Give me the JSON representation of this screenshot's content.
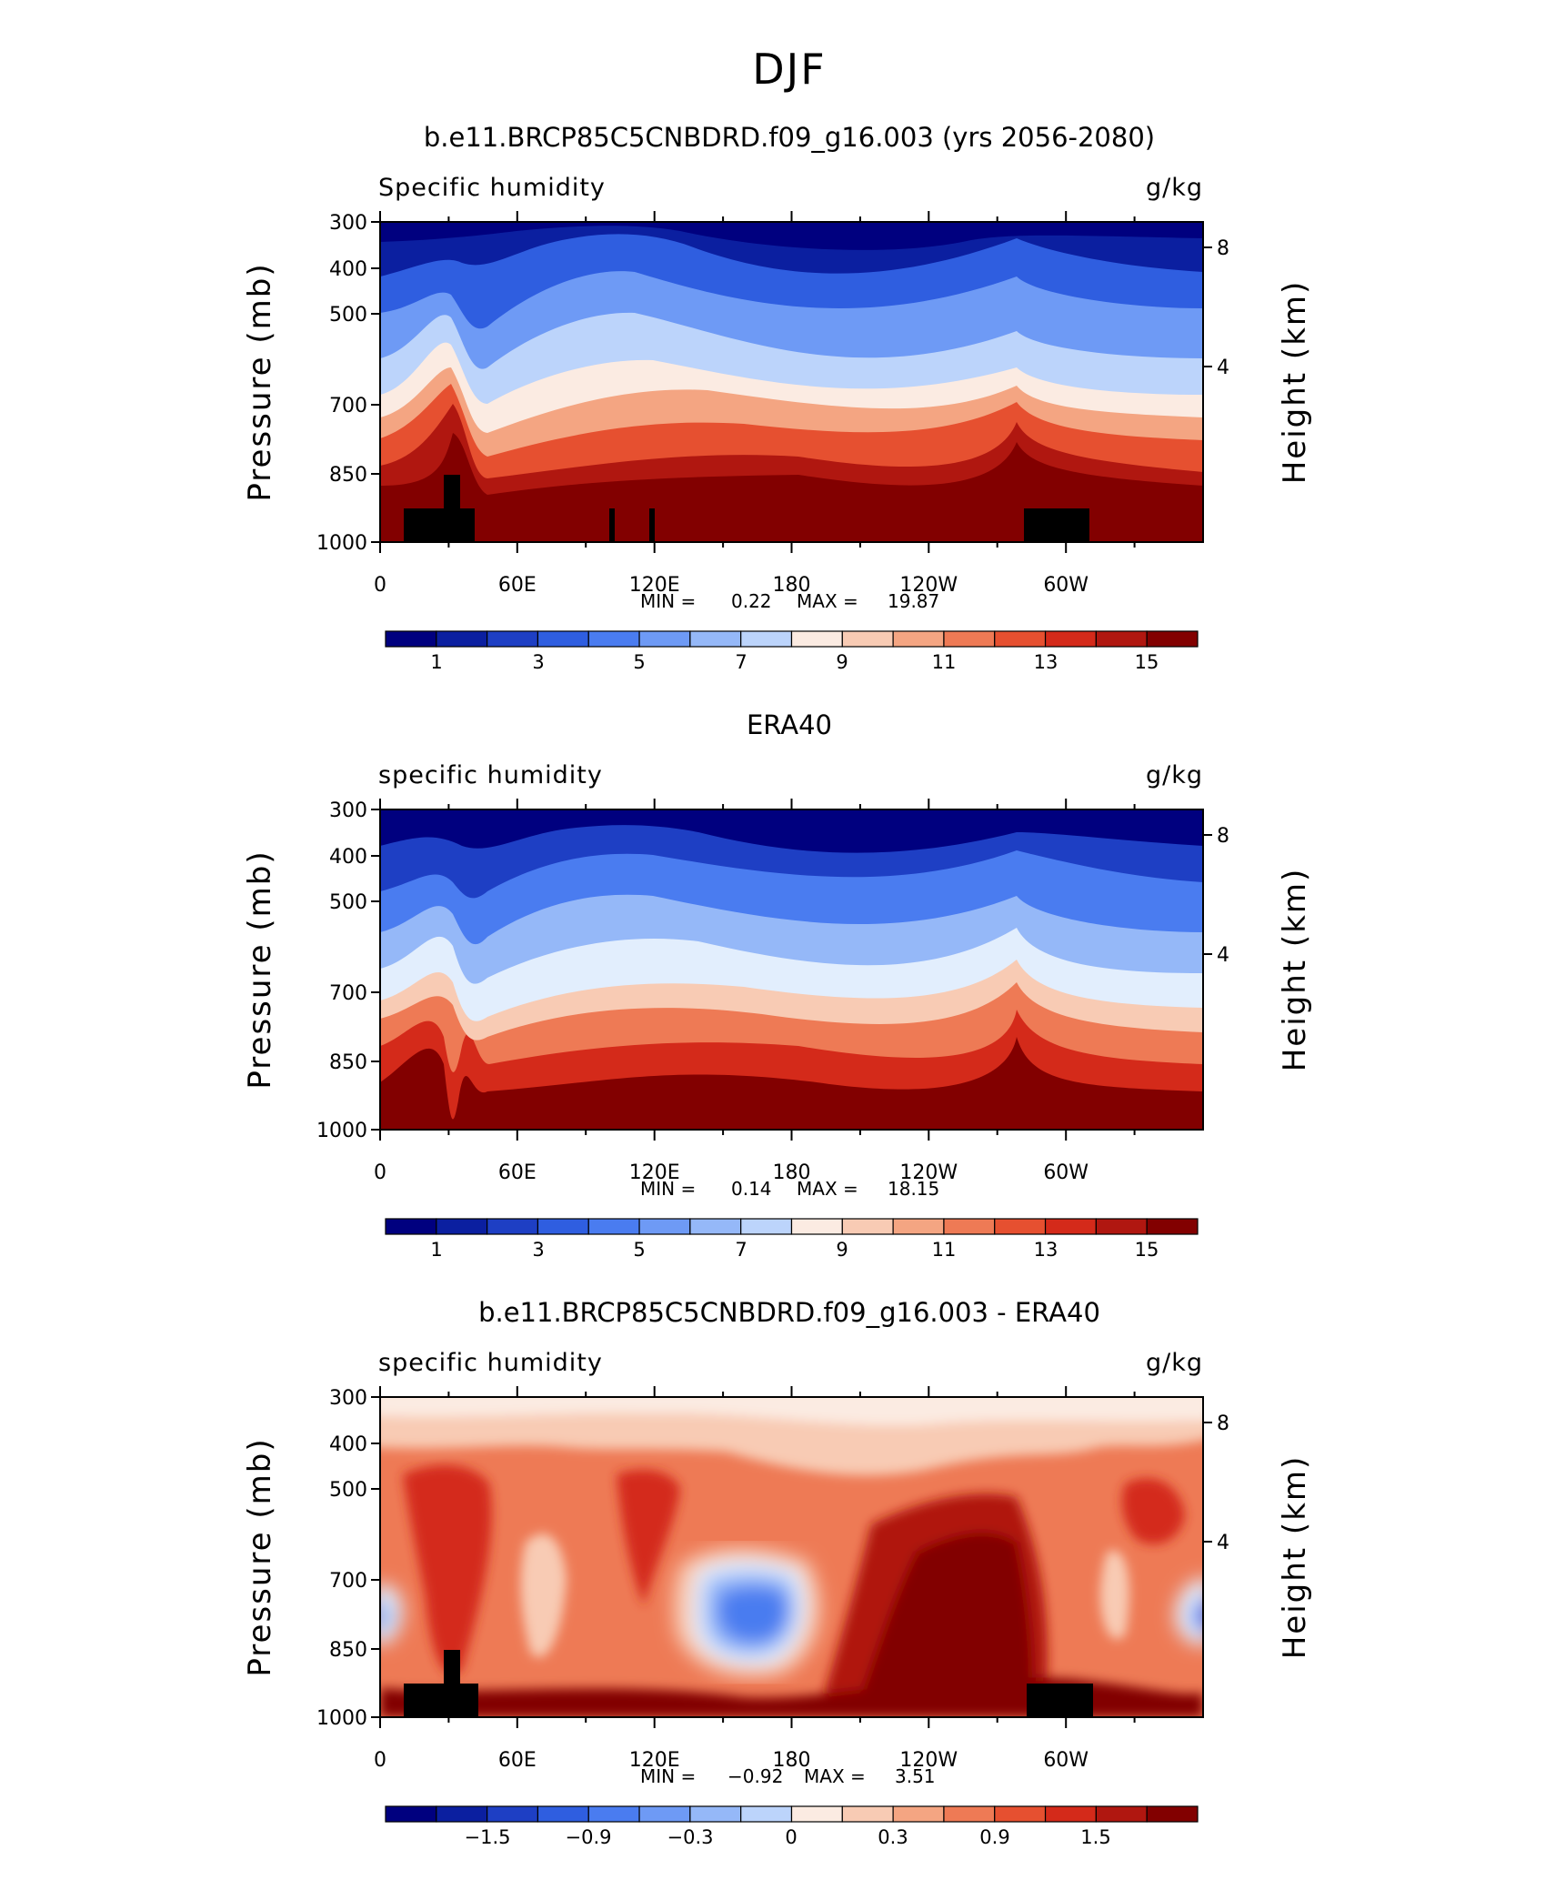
{
  "main_title": "DJF",
  "colors": {
    "scale": [
      "#00007f",
      "#0b1fa0",
      "#1e3fc4",
      "#2f5ee0",
      "#4a7cf0",
      "#6e9af5",
      "#95b8f8",
      "#bcd4fb",
      "#e2eefd",
      "#fbebe2",
      "#f8cbb4",
      "#f4a582",
      "#ee7a55",
      "#e65030",
      "#d42a1a",
      "#b01710",
      "#820000"
    ],
    "landmask": "#000000"
  },
  "panels": [
    {
      "title": "b.e11.BRCP85C5CNBDRD.f09_g16.003 (yrs 2056-2080)",
      "left_label": "Specific humidity",
      "right_label": "g/kg",
      "ylabel": "Pressure (mb)",
      "y2label": "Height (km)",
      "y_ticks": [
        "300",
        "400",
        "500",
        "700",
        "850",
        "1000"
      ],
      "y2_ticks": [
        "8",
        "4"
      ],
      "x_ticks": [
        "0",
        "60E",
        "120E",
        "180",
        "120W",
        "60W"
      ],
      "min_label": "MIN =",
      "min_value": "0.22",
      "max_label": "MAX =",
      "max_value": "19.87",
      "colorbar_labels": [
        "1",
        "3",
        "5",
        "7",
        "9",
        "11",
        "13",
        "15"
      ]
    },
    {
      "title": "ERA40",
      "left_label": "specific humidity",
      "right_label": "g/kg",
      "ylabel": "Pressure (mb)",
      "y2label": "Height (km)",
      "y_ticks": [
        "300",
        "400",
        "500",
        "700",
        "850",
        "1000"
      ],
      "y2_ticks": [
        "8",
        "4"
      ],
      "x_ticks": [
        "0",
        "60E",
        "120E",
        "180",
        "120W",
        "60W"
      ],
      "min_label": "MIN =",
      "min_value": "0.14",
      "max_label": "MAX =",
      "max_value": "18.15",
      "colorbar_labels": [
        "1",
        "3",
        "5",
        "7",
        "9",
        "11",
        "13",
        "15"
      ]
    },
    {
      "title": "b.e11.BRCP85C5CNBDRD.f09_g16.003 - ERA40",
      "left_label": "specific humidity",
      "right_label": "g/kg",
      "ylabel": "Pressure (mb)",
      "y2label": "Height (km)",
      "y_ticks": [
        "300",
        "400",
        "500",
        "700",
        "850",
        "1000"
      ],
      "y2_ticks": [
        "8",
        "4"
      ],
      "x_ticks": [
        "0",
        "60E",
        "120E",
        "180",
        "120W",
        "60W"
      ],
      "min_label": "MIN =",
      "min_value": "−0.92",
      "max_label": "MAX =",
      "max_value": "3.51",
      "colorbar_labels": [
        "−1.5",
        "−0.9",
        "−0.3",
        "0",
        "0.3",
        "0.9",
        "1.5"
      ]
    }
  ],
  "chart_data": [
    {
      "type": "heatmap",
      "title": "b.e11.BRCP85C5CNBDRD.f09_g16.003 (yrs 2056-2080)",
      "variable": "Specific humidity",
      "units": "g/kg",
      "season": "DJF",
      "xlabel": "",
      "ylabel": "Pressure (mb)",
      "y2label": "Height (km)",
      "x_ticks": [
        "0",
        "60E",
        "120E",
        "180",
        "120W",
        "60W"
      ],
      "xlim": [
        0,
        360
      ],
      "pressure_levels": [
        1000,
        850,
        700,
        500,
        400,
        300
      ],
      "ylim": [
        1000,
        300
      ],
      "y2_ticks": [
        8,
        4
      ],
      "min": 0.22,
      "max": 19.87,
      "contour_levels": [
        0.5,
        1,
        1.5,
        2,
        2.5,
        3,
        3.5,
        4,
        4.5,
        5,
        5.5,
        6,
        6.5,
        7,
        7.5,
        8,
        8.5,
        9,
        9.5,
        10,
        11,
        12,
        13,
        14,
        15,
        16
      ],
      "colorbar_ticks": [
        1,
        3,
        5,
        7,
        9,
        11,
        13,
        15
      ],
      "colorbar_range": [
        0,
        16
      ]
    },
    {
      "type": "heatmap",
      "title": "ERA40",
      "variable": "specific humidity",
      "units": "g/kg",
      "xlabel": "",
      "ylabel": "Pressure (mb)",
      "y2label": "Height (km)",
      "x_ticks": [
        "0",
        "60E",
        "120E",
        "180",
        "120W",
        "60W"
      ],
      "xlim": [
        0,
        360
      ],
      "pressure_levels": [
        1000,
        850,
        700,
        500,
        400,
        300
      ],
      "ylim": [
        1000,
        300
      ],
      "y2_ticks": [
        8,
        4
      ],
      "min": 0.14,
      "max": 18.15,
      "colorbar_ticks": [
        1,
        3,
        5,
        7,
        9,
        11,
        13,
        15
      ],
      "colorbar_range": [
        0,
        16
      ]
    },
    {
      "type": "heatmap",
      "title": "b.e11.BRCP85C5CNBDRD.f09_g16.003 - ERA40",
      "variable": "specific humidity",
      "units": "g/kg",
      "xlabel": "",
      "ylabel": "Pressure (mb)",
      "y2label": "Height (km)",
      "x_ticks": [
        "0",
        "60E",
        "120E",
        "180",
        "120W",
        "60W"
      ],
      "xlim": [
        0,
        360
      ],
      "pressure_levels": [
        1000,
        850,
        700,
        500,
        400,
        300
      ],
      "ylim": [
        1000,
        300
      ],
      "y2_ticks": [
        8,
        4
      ],
      "min": -0.92,
      "max": 3.51,
      "colorbar_ticks": [
        -1.5,
        -0.9,
        -0.3,
        0,
        0.3,
        0.9,
        1.5
      ],
      "colorbar_range": [
        -2.1,
        2.1
      ]
    }
  ]
}
